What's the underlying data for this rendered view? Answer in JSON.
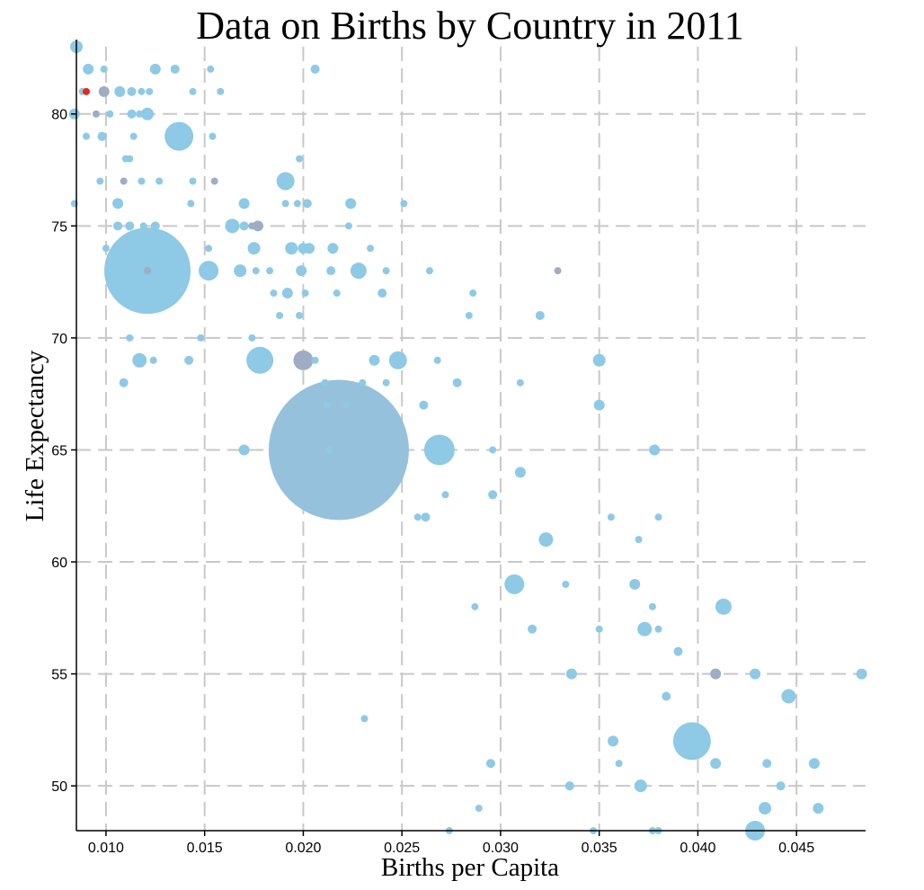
{
  "chart_data": {
    "type": "scatter",
    "title": "Data on Births by Country in 2011",
    "xlabel": "Births per Capita",
    "ylabel": "Life Expectancy",
    "xlim": [
      0.0085,
      0.0485
    ],
    "ylim": [
      48,
      83
    ],
    "xticks": [
      {
        "value": 0.01,
        "label": "0.010"
      },
      {
        "value": 0.015,
        "label": "0.015"
      },
      {
        "value": 0.02,
        "label": "0.020"
      },
      {
        "value": 0.025,
        "label": "0.025"
      },
      {
        "value": 0.03,
        "label": "0.030"
      },
      {
        "value": 0.035,
        "label": "0.035"
      },
      {
        "value": 0.04,
        "label": "0.040"
      },
      {
        "value": 0.045,
        "label": "0.045"
      }
    ],
    "yticks": [
      {
        "value": 50,
        "label": "50"
      },
      {
        "value": 55,
        "label": "55"
      },
      {
        "value": 60,
        "label": "60"
      },
      {
        "value": 65,
        "label": "65"
      },
      {
        "value": 70,
        "label": "70"
      },
      {
        "value": 75,
        "label": "75"
      },
      {
        "value": 80,
        "label": "80"
      }
    ],
    "grid": true,
    "colors": {
      "default": "#8ec9e6",
      "gray": "#9fadc4",
      "highlight": "#e8281e"
    },
    "points": [
      {
        "x": 0.0085,
        "y": 83,
        "r": 7,
        "c": "default"
      },
      {
        "x": 0.0088,
        "y": 81,
        "r": 4,
        "c": "default"
      },
      {
        "x": 0.009,
        "y": 81,
        "r": 4,
        "c": "highlight"
      },
      {
        "x": 0.0091,
        "y": 82,
        "r": 6,
        "c": "default"
      },
      {
        "x": 0.0099,
        "y": 82,
        "r": 4,
        "c": "default"
      },
      {
        "x": 0.0099,
        "y": 81,
        "r": 6,
        "c": "gray"
      },
      {
        "x": 0.0084,
        "y": 80,
        "r": 6,
        "c": "default"
      },
      {
        "x": 0.0095,
        "y": 80,
        "r": 4,
        "c": "gray"
      },
      {
        "x": 0.0102,
        "y": 80,
        "r": 4,
        "c": "default"
      },
      {
        "x": 0.009,
        "y": 79,
        "r": 4,
        "c": "default"
      },
      {
        "x": 0.0098,
        "y": 79,
        "r": 5,
        "c": "default"
      },
      {
        "x": 0.0107,
        "y": 81,
        "r": 6,
        "c": "default"
      },
      {
        "x": 0.0113,
        "y": 81,
        "r": 5,
        "c": "default"
      },
      {
        "x": 0.0118,
        "y": 81,
        "r": 4,
        "c": "default"
      },
      {
        "x": 0.0122,
        "y": 81,
        "r": 4,
        "c": "default"
      },
      {
        "x": 0.0125,
        "y": 82,
        "r": 6,
        "c": "default"
      },
      {
        "x": 0.0135,
        "y": 82,
        "r": 5,
        "c": "default"
      },
      {
        "x": 0.0153,
        "y": 82,
        "r": 4,
        "c": "default"
      },
      {
        "x": 0.0206,
        "y": 82,
        "r": 5,
        "c": "default"
      },
      {
        "x": 0.0113,
        "y": 80,
        "r": 5,
        "c": "default"
      },
      {
        "x": 0.0117,
        "y": 80,
        "r": 4,
        "c": "default"
      },
      {
        "x": 0.0121,
        "y": 80,
        "r": 7,
        "c": "default"
      },
      {
        "x": 0.0144,
        "y": 81,
        "r": 4,
        "c": "default"
      },
      {
        "x": 0.0158,
        "y": 81,
        "r": 4,
        "c": "default"
      },
      {
        "x": 0.0114,
        "y": 79,
        "r": 4,
        "c": "default"
      },
      {
        "x": 0.0137,
        "y": 79,
        "r": 16,
        "c": "default"
      },
      {
        "x": 0.0154,
        "y": 79,
        "r": 4,
        "c": "default"
      },
      {
        "x": 0.011,
        "y": 78,
        "r": 4,
        "c": "default"
      },
      {
        "x": 0.0112,
        "y": 78,
        "r": 4,
        "c": "default"
      },
      {
        "x": 0.0198,
        "y": 78,
        "r": 4,
        "c": "default"
      },
      {
        "x": 0.0097,
        "y": 77,
        "r": 4,
        "c": "default"
      },
      {
        "x": 0.0109,
        "y": 77,
        "r": 4,
        "c": "gray"
      },
      {
        "x": 0.0118,
        "y": 77,
        "r": 4,
        "c": "default"
      },
      {
        "x": 0.0127,
        "y": 77,
        "r": 4,
        "c": "default"
      },
      {
        "x": 0.0144,
        "y": 77,
        "r": 4,
        "c": "default"
      },
      {
        "x": 0.0155,
        "y": 77,
        "r": 4,
        "c": "gray"
      },
      {
        "x": 0.0191,
        "y": 77,
        "r": 10,
        "c": "default"
      },
      {
        "x": 0.0084,
        "y": 76,
        "r": 4,
        "c": "default"
      },
      {
        "x": 0.0106,
        "y": 76,
        "r": 6,
        "c": "default"
      },
      {
        "x": 0.0143,
        "y": 76,
        "r": 4,
        "c": "default"
      },
      {
        "x": 0.017,
        "y": 76,
        "r": 6,
        "c": "default"
      },
      {
        "x": 0.0191,
        "y": 76,
        "r": 4,
        "c": "default"
      },
      {
        "x": 0.0197,
        "y": 76,
        "r": 4,
        "c": "default"
      },
      {
        "x": 0.0202,
        "y": 76,
        "r": 5,
        "c": "default"
      },
      {
        "x": 0.0224,
        "y": 76,
        "r": 6,
        "c": "default"
      },
      {
        "x": 0.0251,
        "y": 76,
        "r": 4,
        "c": "default"
      },
      {
        "x": 0.0106,
        "y": 75,
        "r": 5,
        "c": "default"
      },
      {
        "x": 0.0112,
        "y": 75,
        "r": 5,
        "c": "default"
      },
      {
        "x": 0.0119,
        "y": 75,
        "r": 4,
        "c": "default"
      },
      {
        "x": 0.0125,
        "y": 75,
        "r": 5,
        "c": "default"
      },
      {
        "x": 0.0164,
        "y": 75,
        "r": 8,
        "c": "default"
      },
      {
        "x": 0.017,
        "y": 75,
        "r": 5,
        "c": "default"
      },
      {
        "x": 0.0174,
        "y": 75,
        "r": 4,
        "c": "gray"
      },
      {
        "x": 0.0177,
        "y": 75,
        "r": 6,
        "c": "gray"
      },
      {
        "x": 0.0223,
        "y": 75,
        "r": 4,
        "c": "default"
      },
      {
        "x": 0.01,
        "y": 74,
        "r": 4,
        "c": "default"
      },
      {
        "x": 0.0152,
        "y": 74,
        "r": 4,
        "c": "default"
      },
      {
        "x": 0.0175,
        "y": 74,
        "r": 7,
        "c": "default"
      },
      {
        "x": 0.0194,
        "y": 74,
        "r": 7,
        "c": "default"
      },
      {
        "x": 0.02,
        "y": 74,
        "r": 6,
        "c": "default"
      },
      {
        "x": 0.0203,
        "y": 74,
        "r": 6,
        "c": "default"
      },
      {
        "x": 0.0215,
        "y": 74,
        "r": 6,
        "c": "default"
      },
      {
        "x": 0.0234,
        "y": 74,
        "r": 4,
        "c": "default"
      },
      {
        "x": 0.0121,
        "y": 73,
        "r": 48,
        "c": "default"
      },
      {
        "x": 0.0121,
        "y": 73,
        "r": 4,
        "c": "gray"
      },
      {
        "x": 0.0152,
        "y": 73,
        "r": 11,
        "c": "default"
      },
      {
        "x": 0.0168,
        "y": 73,
        "r": 7,
        "c": "default"
      },
      {
        "x": 0.0176,
        "y": 73,
        "r": 4,
        "c": "default"
      },
      {
        "x": 0.0183,
        "y": 73,
        "r": 4,
        "c": "default"
      },
      {
        "x": 0.0199,
        "y": 73,
        "r": 6,
        "c": "default"
      },
      {
        "x": 0.0214,
        "y": 73,
        "r": 5,
        "c": "default"
      },
      {
        "x": 0.0228,
        "y": 73,
        "r": 9,
        "c": "default"
      },
      {
        "x": 0.0242,
        "y": 73,
        "r": 4,
        "c": "default"
      },
      {
        "x": 0.0264,
        "y": 73,
        "r": 4,
        "c": "default"
      },
      {
        "x": 0.0329,
        "y": 73,
        "r": 4,
        "c": "gray"
      },
      {
        "x": 0.0185,
        "y": 72,
        "r": 4,
        "c": "default"
      },
      {
        "x": 0.0192,
        "y": 72,
        "r": 6,
        "c": "default"
      },
      {
        "x": 0.0201,
        "y": 72,
        "r": 4,
        "c": "default"
      },
      {
        "x": 0.0217,
        "y": 72,
        "r": 4,
        "c": "default"
      },
      {
        "x": 0.024,
        "y": 72,
        "r": 5,
        "c": "default"
      },
      {
        "x": 0.0286,
        "y": 72,
        "r": 4,
        "c": "default"
      },
      {
        "x": 0.0188,
        "y": 71,
        "r": 4,
        "c": "default"
      },
      {
        "x": 0.0198,
        "y": 71,
        "r": 4,
        "c": "default"
      },
      {
        "x": 0.0284,
        "y": 71,
        "r": 4,
        "c": "default"
      },
      {
        "x": 0.032,
        "y": 71,
        "r": 5,
        "c": "default"
      },
      {
        "x": 0.0112,
        "y": 70,
        "r": 4,
        "c": "default"
      },
      {
        "x": 0.0148,
        "y": 70,
        "r": 4,
        "c": "default"
      },
      {
        "x": 0.0174,
        "y": 70,
        "r": 4,
        "c": "default"
      },
      {
        "x": 0.0117,
        "y": 69,
        "r": 8,
        "c": "default"
      },
      {
        "x": 0.0124,
        "y": 69,
        "r": 4,
        "c": "default"
      },
      {
        "x": 0.0142,
        "y": 69,
        "r": 5,
        "c": "default"
      },
      {
        "x": 0.0178,
        "y": 69,
        "r": 15,
        "c": "default"
      },
      {
        "x": 0.02,
        "y": 69,
        "r": 11,
        "c": "gray"
      },
      {
        "x": 0.0206,
        "y": 69,
        "r": 4,
        "c": "default"
      },
      {
        "x": 0.0236,
        "y": 69,
        "r": 6,
        "c": "default"
      },
      {
        "x": 0.0248,
        "y": 69,
        "r": 10,
        "c": "default"
      },
      {
        "x": 0.0268,
        "y": 69,
        "r": 4,
        "c": "default"
      },
      {
        "x": 0.035,
        "y": 69,
        "r": 7,
        "c": "default"
      },
      {
        "x": 0.0109,
        "y": 68,
        "r": 5,
        "c": "default"
      },
      {
        "x": 0.0211,
        "y": 68,
        "r": 4,
        "c": "default"
      },
      {
        "x": 0.023,
        "y": 68,
        "r": 4,
        "c": "default"
      },
      {
        "x": 0.0242,
        "y": 68,
        "r": 4,
        "c": "default"
      },
      {
        "x": 0.0278,
        "y": 68,
        "r": 5,
        "c": "default"
      },
      {
        "x": 0.031,
        "y": 68,
        "r": 4,
        "c": "default"
      },
      {
        "x": 0.0212,
        "y": 67,
        "r": 4,
        "c": "default"
      },
      {
        "x": 0.0222,
        "y": 67,
        "r": 4,
        "c": "default"
      },
      {
        "x": 0.0261,
        "y": 67,
        "r": 5,
        "c": "default"
      },
      {
        "x": 0.035,
        "y": 67,
        "r": 6,
        "c": "default"
      },
      {
        "x": 0.0218,
        "y": 65,
        "r": 78,
        "c": "steel"
      },
      {
        "x": 0.0213,
        "y": 65,
        "r": 4,
        "c": "default"
      },
      {
        "x": 0.017,
        "y": 65,
        "r": 6,
        "c": "default"
      },
      {
        "x": 0.0269,
        "y": 65,
        "r": 17,
        "c": "default"
      },
      {
        "x": 0.0296,
        "y": 65,
        "r": 4,
        "c": "default"
      },
      {
        "x": 0.0378,
        "y": 65,
        "r": 6,
        "c": "default"
      },
      {
        "x": 0.031,
        "y": 64,
        "r": 6,
        "c": "default"
      },
      {
        "x": 0.0272,
        "y": 63,
        "r": 4,
        "c": "default"
      },
      {
        "x": 0.0296,
        "y": 63,
        "r": 5,
        "c": "default"
      },
      {
        "x": 0.0258,
        "y": 62,
        "r": 4,
        "c": "default"
      },
      {
        "x": 0.0262,
        "y": 62,
        "r": 5,
        "c": "default"
      },
      {
        "x": 0.0356,
        "y": 62,
        "r": 4,
        "c": "default"
      },
      {
        "x": 0.038,
        "y": 62,
        "r": 4,
        "c": "default"
      },
      {
        "x": 0.0323,
        "y": 61,
        "r": 8,
        "c": "default"
      },
      {
        "x": 0.037,
        "y": 61,
        "r": 4,
        "c": "default"
      },
      {
        "x": 0.0307,
        "y": 59,
        "r": 11,
        "c": "default"
      },
      {
        "x": 0.0333,
        "y": 59,
        "r": 4,
        "c": "default"
      },
      {
        "x": 0.0368,
        "y": 59,
        "r": 6,
        "c": "default"
      },
      {
        "x": 0.0287,
        "y": 58,
        "r": 4,
        "c": "default"
      },
      {
        "x": 0.0377,
        "y": 58,
        "r": 4,
        "c": "default"
      },
      {
        "x": 0.0413,
        "y": 58,
        "r": 9,
        "c": "default"
      },
      {
        "x": 0.0316,
        "y": 57,
        "r": 5,
        "c": "default"
      },
      {
        "x": 0.035,
        "y": 57,
        "r": 4,
        "c": "default"
      },
      {
        "x": 0.0373,
        "y": 57,
        "r": 8,
        "c": "default"
      },
      {
        "x": 0.038,
        "y": 57,
        "r": 4,
        "c": "default"
      },
      {
        "x": 0.039,
        "y": 56,
        "r": 5,
        "c": "default"
      },
      {
        "x": 0.0336,
        "y": 55,
        "r": 6,
        "c": "default"
      },
      {
        "x": 0.0409,
        "y": 55,
        "r": 6,
        "c": "gray"
      },
      {
        "x": 0.0429,
        "y": 55,
        "r": 6,
        "c": "default"
      },
      {
        "x": 0.0483,
        "y": 55,
        "r": 6,
        "c": "default"
      },
      {
        "x": 0.0384,
        "y": 54,
        "r": 5,
        "c": "default"
      },
      {
        "x": 0.0446,
        "y": 54,
        "r": 8,
        "c": "default"
      },
      {
        "x": 0.0231,
        "y": 53,
        "r": 4,
        "c": "default"
      },
      {
        "x": 0.0357,
        "y": 52,
        "r": 6,
        "c": "default"
      },
      {
        "x": 0.0397,
        "y": 52,
        "r": 21,
        "c": "default"
      },
      {
        "x": 0.0295,
        "y": 51,
        "r": 5,
        "c": "default"
      },
      {
        "x": 0.036,
        "y": 51,
        "r": 4,
        "c": "default"
      },
      {
        "x": 0.0409,
        "y": 51,
        "r": 6,
        "c": "default"
      },
      {
        "x": 0.0435,
        "y": 51,
        "r": 5,
        "c": "default"
      },
      {
        "x": 0.0459,
        "y": 51,
        "r": 6,
        "c": "default"
      },
      {
        "x": 0.0335,
        "y": 50,
        "r": 5,
        "c": "default"
      },
      {
        "x": 0.0371,
        "y": 50,
        "r": 7,
        "c": "default"
      },
      {
        "x": 0.0442,
        "y": 50,
        "r": 5,
        "c": "default"
      },
      {
        "x": 0.0289,
        "y": 49,
        "r": 4,
        "c": "default"
      },
      {
        "x": 0.0434,
        "y": 49,
        "r": 7,
        "c": "default"
      },
      {
        "x": 0.0461,
        "y": 49,
        "r": 6,
        "c": "default"
      },
      {
        "x": 0.0274,
        "y": 48,
        "r": 4,
        "c": "default"
      },
      {
        "x": 0.0347,
        "y": 48,
        "r": 4,
        "c": "default"
      },
      {
        "x": 0.0377,
        "y": 48,
        "r": 4,
        "c": "default"
      },
      {
        "x": 0.038,
        "y": 48,
        "r": 4,
        "c": "default"
      },
      {
        "x": 0.0429,
        "y": 48,
        "r": 11,
        "c": "default"
      }
    ]
  }
}
